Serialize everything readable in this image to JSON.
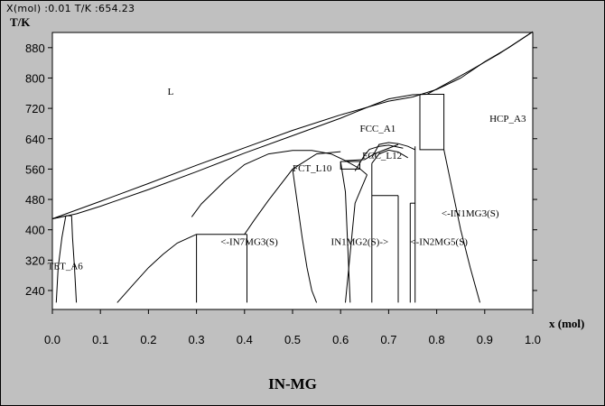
{
  "status_readout": "X(mol) :0.01 T/K :654.23",
  "chart_data": {
    "type": "line",
    "title": "IN-MG",
    "xlabel": "x (mol)",
    "ylabel": "T/K",
    "xlim": [
      0.0,
      1.0
    ],
    "ylim": [
      190,
      920
    ],
    "xticks": [
      0.0,
      0.1,
      0.2,
      0.3,
      0.4,
      0.5,
      0.6,
      0.7,
      0.8,
      0.9,
      1.0
    ],
    "xtick_labels": [
      "0.0",
      "0.1",
      "0.2",
      "0.3",
      "0.4",
      "0.5",
      "0.6",
      "0.7",
      "0.8",
      "0.9",
      "1.0"
    ],
    "yticks": [
      240,
      320,
      400,
      480,
      560,
      640,
      720,
      800,
      880
    ],
    "ytick_labels": [
      "240",
      "320",
      "400",
      "480",
      "560",
      "640",
      "720",
      "800",
      "880"
    ],
    "grid": false,
    "phase_labels": [
      {
        "text": "L",
        "x": 0.24,
        "y": 766
      },
      {
        "text": "HCP_A3",
        "x": 0.91,
        "y": 694
      },
      {
        "text": "FCC_A1",
        "x": 0.64,
        "y": 668
      },
      {
        "text": "FCC_L12",
        "x": 0.645,
        "y": 597
      },
      {
        "text": "FCT_L10",
        "x": 0.5,
        "y": 563
      },
      {
        "text": "<-IN1MG3(S)",
        "x": 0.81,
        "y": 444
      },
      {
        "text": "<-IN7MG3(S)",
        "x": 0.35,
        "y": 370
      },
      {
        "text": "IN1MG2(S)->",
        "x": 0.58,
        "y": 370
      },
      {
        "text": "<-IN2MG5(S)",
        "x": 0.745,
        "y": 370
      },
      {
        "text": "TET_A6",
        "x": -0.01,
        "y": 305
      }
    ],
    "series": [
      {
        "x": [
          0,
          0.1,
          0.2,
          0.3,
          0.4,
          0.5,
          0.6,
          0.7,
          0.75,
          0.8,
          0.85,
          0.9,
          0.95,
          1.0
        ],
        "y": [
          429,
          475,
          522,
          570,
          616,
          662,
          703,
          739,
          750,
          770,
          800,
          843,
          880,
          922
        ]
      },
      {
        "x": [
          0,
          0.05,
          0.1,
          0.2,
          0.3,
          0.4,
          0.5,
          0.6,
          0.65,
          0.7,
          0.75,
          0.78,
          0.82,
          0.87,
          0.93,
          1.0
        ],
        "y": [
          429,
          442,
          462,
          506,
          553,
          602,
          648,
          694,
          720,
          745,
          756,
          757,
          785,
          820,
          864,
          922
        ]
      },
      {
        "x": [
          0.765,
          0.815,
          0.815,
          0.765,
          0.765
        ],
        "y": [
          757,
          757,
          611,
          611,
          757
        ]
      },
      {
        "x": [
          0.815,
          0.83,
          0.85,
          0.87,
          0.89
        ],
        "y": [
          611,
          520,
          400,
          300,
          208
        ]
      },
      {
        "x": [
          0.755,
          0.755
        ],
        "y": [
          611,
          208
        ]
      },
      {
        "x": [
          0.755,
          0.755
        ],
        "y": [
          620,
          611
        ]
      },
      {
        "x": [
          0.29,
          0.31,
          0.36,
          0.4,
          0.45,
          0.5,
          0.54,
          0.58,
          0.61,
          0.64,
          0.655
        ],
        "y": [
          434,
          468,
          530,
          572,
          600,
          609,
          609,
          600,
          582,
          561,
          545
        ]
      },
      {
        "x": [
          0.4,
          0.42,
          0.45,
          0.5,
          0.55,
          0.6
        ],
        "y": [
          388,
          425,
          478,
          560,
          600,
          606
        ]
      },
      {
        "x": [
          0.61,
          0.65,
          0.67,
          0.72
        ],
        "y": [
          582,
          585,
          600,
          625
        ]
      },
      {
        "x": [
          0.63,
          0.65,
          0.66,
          0.68,
          0.7,
          0.73
        ],
        "y": [
          555,
          597,
          612,
          620,
          623,
          615
        ]
      },
      {
        "x": [
          0.6,
          0.61,
          0.62
        ],
        "y": [
          580,
          500,
          208
        ]
      },
      {
        "x": [
          0.665,
          0.68,
          0.7,
          0.72,
          0.74,
          0.755
        ],
        "y": [
          590,
          625,
          630,
          627,
          620,
          611
        ]
      },
      {
        "x": [
          0.665,
          0.68,
          0.7,
          0.72,
          0.74
        ],
        "y": [
          575,
          600,
          610,
          605,
          590
        ]
      },
      {
        "x": [
          0.6,
          0.64,
          0.64,
          0.6,
          0.6
        ],
        "y": [
          580,
          580,
          560,
          560,
          580
        ]
      },
      {
        "x": [
          0.665,
          0.665
        ],
        "y": [
          575,
          208
        ]
      },
      {
        "x": [
          0.72,
          0.72
        ],
        "y": [
          490,
          208
        ]
      },
      {
        "x": [
          0.745,
          0.745
        ],
        "y": [
          470,
          208
        ]
      },
      {
        "x": [
          0.745,
          0.755
        ],
        "y": [
          470,
          470
        ]
      },
      {
        "x": [
          0.665,
          0.72
        ],
        "y": [
          490,
          490
        ]
      },
      {
        "x": [
          0.3,
          0.405
        ],
        "y": [
          388,
          388
        ]
      },
      {
        "x": [
          0.3,
          0.3
        ],
        "y": [
          388,
          208
        ]
      },
      {
        "x": [
          0.405,
          0.405
        ],
        "y": [
          388,
          208
        ]
      },
      {
        "x": [
          0.135,
          0.17,
          0.2,
          0.23,
          0.26,
          0.3
        ],
        "y": [
          208,
          258,
          300,
          335,
          365,
          388
        ]
      },
      {
        "x": [
          0.0,
          0.03,
          0.04
        ],
        "y": [
          429,
          437,
          437
        ]
      },
      {
        "x": [
          0.028,
          0.02,
          0.012,
          0.008
        ],
        "y": [
          437,
          380,
          300,
          208
        ]
      },
      {
        "x": [
          0.04,
          0.042,
          0.046,
          0.05
        ],
        "y": [
          437,
          380,
          300,
          208
        ]
      },
      {
        "x": [
          0.655,
          0.64,
          0.63,
          0.61
        ],
        "y": [
          545,
          500,
          470,
          208
        ]
      },
      {
        "x": [
          0.5,
          0.51,
          0.52,
          0.53,
          0.54,
          0.55
        ],
        "y": [
          560,
          470,
          380,
          300,
          240,
          208
        ]
      }
    ]
  }
}
